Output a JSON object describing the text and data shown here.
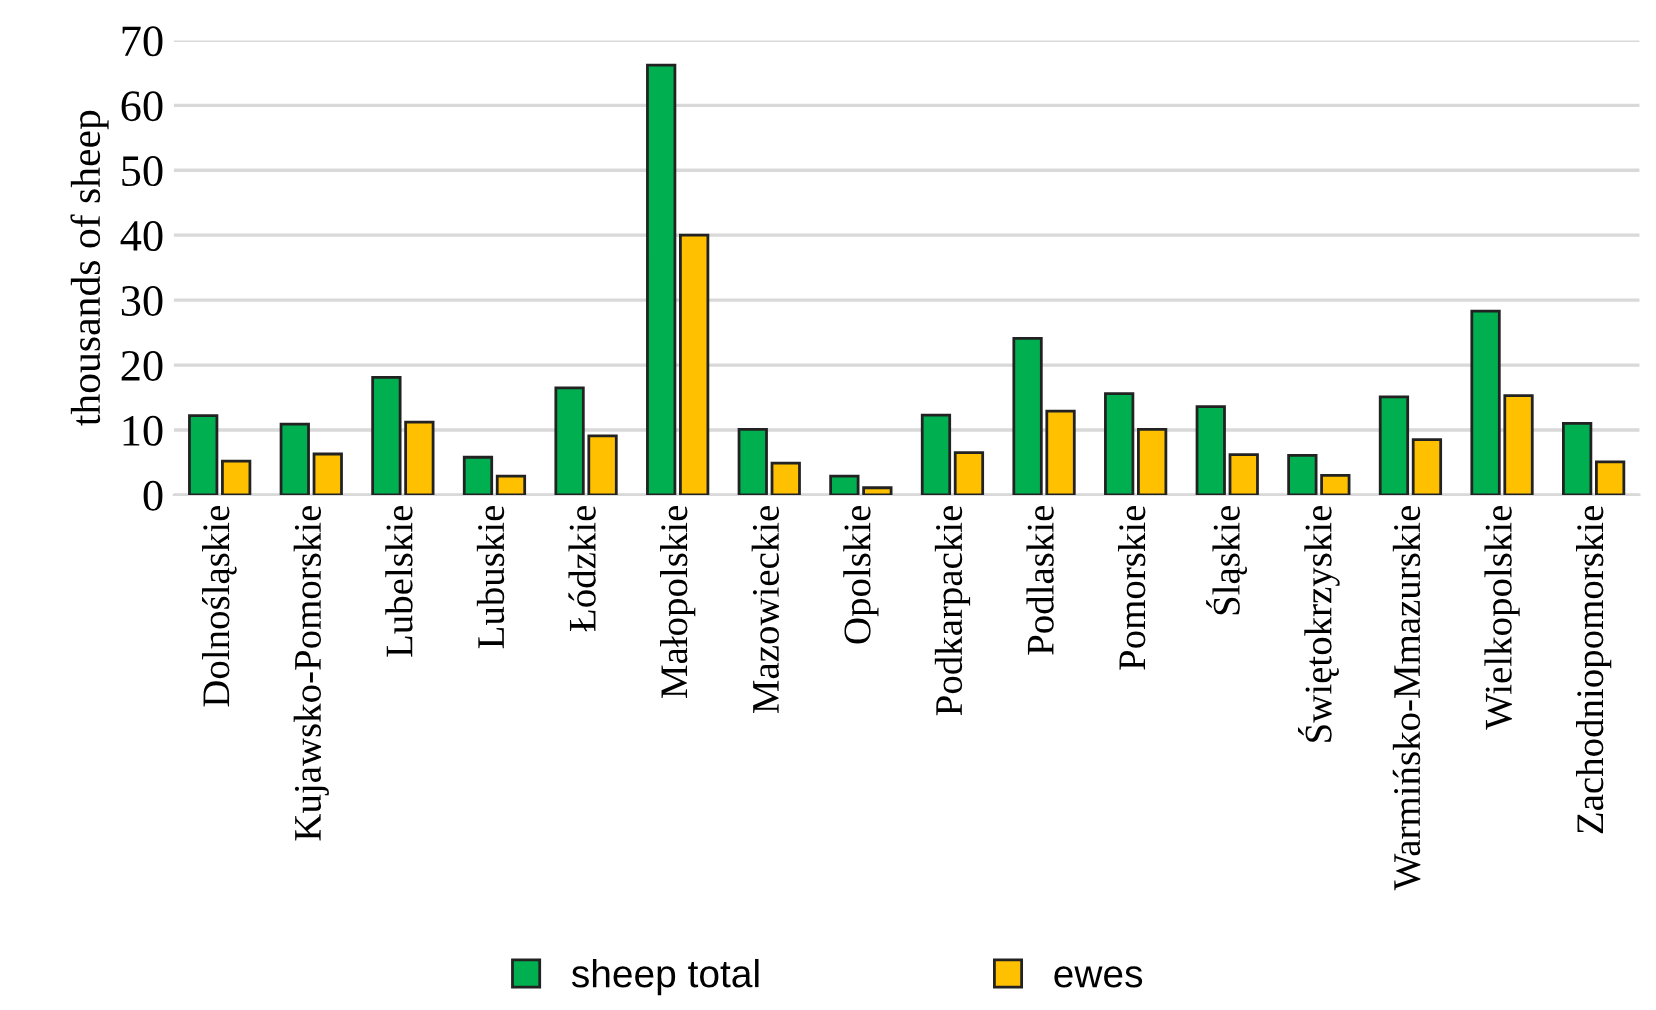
{
  "chart_data": {
    "type": "bar",
    "ylabel": "thousands of sheep",
    "categories": [
      "Dolnośląskie",
      "Kujawsko-Pomorskie",
      "Lubelskie",
      "Lubuskie",
      "Łódzkie",
      "Małopolskie",
      "Mazowieckie",
      "Opolskie",
      "Podkarpackie",
      "Podlaskie",
      "Pomorskie",
      "Śląskie",
      "Świętokrzyskie",
      "Warmińsko-Mmazurskie",
      "Wielkopolskie",
      "Zachodniopomorskie"
    ],
    "series": [
      {
        "name": "sheep total",
        "color": "#00b050",
        "values": [
          12.2,
          10.9,
          18.1,
          5.8,
          16.5,
          66.2,
          10.1,
          2.9,
          12.3,
          24.1,
          15.6,
          13.6,
          6.1,
          15.1,
          28.3,
          11.0
        ]
      },
      {
        "name": "ewes",
        "color": "#ffc000",
        "values": [
          5.2,
          6.3,
          11.2,
          2.9,
          9.1,
          40.0,
          4.9,
          1.1,
          6.5,
          12.9,
          10.1,
          6.2,
          3.0,
          8.5,
          15.3,
          5.1
        ]
      }
    ],
    "ylim": [
      0,
      70
    ],
    "yticks": [
      0,
      10,
      20,
      30,
      40,
      50,
      60,
      70
    ],
    "grid": "y",
    "legend": "bottom"
  }
}
